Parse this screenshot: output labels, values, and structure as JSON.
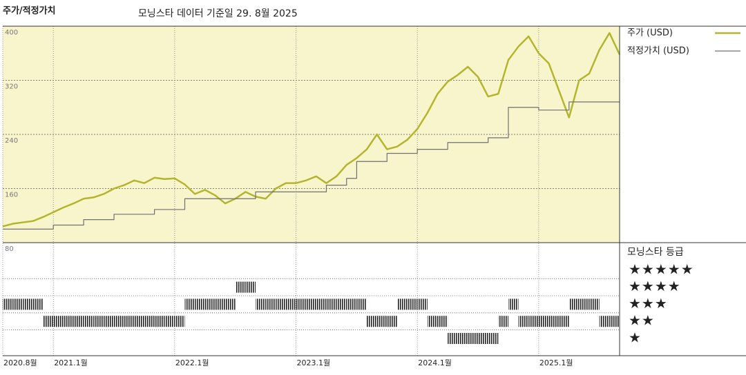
{
  "chart_data": [
    {
      "type": "line",
      "title": "주가/적정가치",
      "subtitle": "모닝스타 데이터 기준일 29. 8월 2025",
      "x": [
        "2020-08",
        "2020-09",
        "2020-10",
        "2020-11",
        "2020-12",
        "2021-01",
        "2021-02",
        "2021-03",
        "2021-04",
        "2021-05",
        "2021-06",
        "2021-07",
        "2021-08",
        "2021-09",
        "2021-10",
        "2021-11",
        "2021-12",
        "2022-01",
        "2022-02",
        "2022-03",
        "2022-04",
        "2022-05",
        "2022-06",
        "2022-07",
        "2022-08",
        "2022-09",
        "2022-10",
        "2022-11",
        "2022-12",
        "2023-01",
        "2023-02",
        "2023-03",
        "2023-04",
        "2023-05",
        "2023-06",
        "2023-07",
        "2023-08",
        "2023-09",
        "2023-10",
        "2023-11",
        "2023-12",
        "2024-01",
        "2024-02",
        "2024-03",
        "2024-04",
        "2024-05",
        "2024-06",
        "2024-07",
        "2024-08",
        "2024-09",
        "2024-10",
        "2024-11",
        "2024-12",
        "2025-01",
        "2025-02",
        "2025-03",
        "2025-04",
        "2025-05",
        "2025-06",
        "2025-07",
        "2025-08",
        "2025-09"
      ],
      "series": [
        {
          "name": "주가 (USD)",
          "color": "#b3b52c",
          "width": 2.5,
          "step": false,
          "values": [
            104,
            108,
            110,
            112,
            118,
            125,
            132,
            138,
            145,
            147,
            152,
            160,
            165,
            172,
            168,
            176,
            174,
            175,
            166,
            152,
            158,
            150,
            138,
            145,
            155,
            148,
            145,
            160,
            168,
            168,
            172,
            178,
            168,
            178,
            195,
            205,
            218,
            240,
            218,
            222,
            232,
            248,
            272,
            300,
            318,
            328,
            340,
            325,
            296,
            300,
            350,
            370,
            385,
            360,
            345,
            305,
            265,
            320,
            330,
            365,
            390,
            358
          ]
        },
        {
          "name": "적정가치 (USD)",
          "color": "#707070",
          "width": 1.2,
          "step": true,
          "values": [
            100,
            100,
            100,
            100,
            100,
            106,
            106,
            106,
            114,
            114,
            114,
            122,
            122,
            122,
            122,
            129,
            129,
            129,
            145,
            145,
            145,
            145,
            145,
            145,
            145,
            155,
            155,
            155,
            155,
            155,
            155,
            155,
            165,
            165,
            175,
            200,
            200,
            200,
            212,
            212,
            212,
            218,
            218,
            218,
            228,
            228,
            228,
            228,
            235,
            235,
            280,
            280,
            280,
            276,
            276,
            276,
            288,
            288,
            288,
            288,
            288,
            288
          ]
        }
      ],
      "xlim": [
        "2020-08",
        "2025-09"
      ],
      "xticks": [
        {
          "value": "2020-08",
          "label": "2020.8월"
        },
        {
          "value": "2021-01",
          "label": "2021.1월"
        },
        {
          "value": "2022-01",
          "label": "2022.1월"
        },
        {
          "value": "2023-01",
          "label": "2023.1월"
        },
        {
          "value": "2024-01",
          "label": "2024.1월"
        },
        {
          "value": "2025-01",
          "label": "2025.1월"
        }
      ],
      "ylim": [
        80,
        400
      ],
      "yticks": [
        80,
        160,
        240,
        320,
        400
      ],
      "grid": true,
      "background": "#f8f4cc"
    },
    {
      "type": "rating",
      "title": "모닝스타 등급",
      "color": "#222222",
      "levels": [
        "★",
        "★★",
        "★★★",
        "★★★★",
        "★★★★★"
      ],
      "x": [
        "2020-08",
        "2020-09",
        "2020-10",
        "2020-11",
        "2020-12",
        "2021-01",
        "2021-02",
        "2021-03",
        "2021-04",
        "2021-05",
        "2021-06",
        "2021-07",
        "2021-08",
        "2021-09",
        "2021-10",
        "2021-11",
        "2021-12",
        "2022-01",
        "2022-02",
        "2022-03",
        "2022-04",
        "2022-05",
        "2022-06",
        "2022-07",
        "2022-08",
        "2022-09",
        "2022-10",
        "2022-11",
        "2022-12",
        "2023-01",
        "2023-02",
        "2023-03",
        "2023-04",
        "2023-05",
        "2023-06",
        "2023-07",
        "2023-08",
        "2023-09",
        "2023-10",
        "2023-11",
        "2023-12",
        "2024-01",
        "2024-02",
        "2024-03",
        "2024-04",
        "2024-05",
        "2024-06",
        "2024-07",
        "2024-08",
        "2024-09",
        "2024-10",
        "2024-11",
        "2024-12",
        "2025-01",
        "2025-02",
        "2025-03",
        "2025-04",
        "2025-05",
        "2025-06",
        "2025-07",
        "2025-08"
      ],
      "values": [
        3,
        3,
        3,
        3,
        2,
        2,
        2,
        2,
        2,
        2,
        2,
        2,
        2,
        2,
        2,
        2,
        2,
        2,
        3,
        3,
        3,
        3,
        3,
        4,
        4,
        3,
        3,
        3,
        3,
        3,
        3,
        3,
        3,
        3,
        3,
        3,
        2,
        2,
        2,
        3,
        3,
        3,
        2,
        2,
        1,
        1,
        1,
        1,
        1,
        2,
        3,
        2,
        2,
        2,
        2,
        2,
        3,
        3,
        3,
        2,
        2
      ]
    }
  ]
}
